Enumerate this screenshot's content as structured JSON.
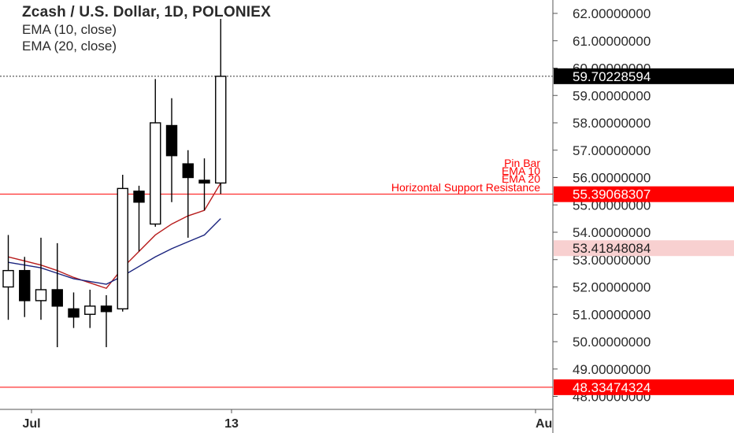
{
  "legend": {
    "title": "Zcash / U.S. Dollar, 1D, POLONIEX",
    "ema10": "EMA (10, close)",
    "ema20": "EMA (20, close)"
  },
  "colors": {
    "text": "#2a2a2a",
    "support_line": "#ff0000",
    "ema10": "#b71c1c",
    "ema20": "#1a237e",
    "candle_up_fill": "#ffffff",
    "candle_down_fill": "#000000",
    "price_tag_dark": "#000000",
    "price_tag_red": "#ff0000",
    "price_tag_light": "#f8d0d0",
    "annotation_text": "#ff0000"
  },
  "chart_data": {
    "type": "candlestick",
    "title": "Zcash / U.S. Dollar, 1D, POLONIEX",
    "x_tick_labels": [
      "Jul",
      "13",
      "Au"
    ],
    "y_ticks": [
      "48.00000000",
      "49.00000000",
      "50.00000000",
      "51.00000000",
      "52.00000000",
      "53.00000000",
      "54.00000000",
      "55.00000000",
      "56.00000000",
      "57.00000000",
      "58.00000000",
      "59.00000000",
      "60.00000000",
      "61.00000000",
      "62.00000000"
    ],
    "ylim": [
      47.6,
      62.5
    ],
    "grid": false,
    "candles": [
      {
        "o": 52.0,
        "h": 53.9,
        "l": 50.8,
        "c": 52.6
      },
      {
        "o": 52.6,
        "h": 53.1,
        "l": 50.9,
        "c": 51.5
      },
      {
        "o": 51.5,
        "h": 53.8,
        "l": 50.8,
        "c": 51.9
      },
      {
        "o": 51.9,
        "h": 53.6,
        "l": 49.8,
        "c": 51.3
      },
      {
        "o": 51.2,
        "h": 51.8,
        "l": 50.5,
        "c": 50.9
      },
      {
        "o": 51.0,
        "h": 51.9,
        "l": 50.5,
        "c": 51.3
      },
      {
        "o": 51.3,
        "h": 51.7,
        "l": 49.8,
        "c": 51.1
      },
      {
        "o": 51.2,
        "h": 56.1,
        "l": 51.1,
        "c": 55.6
      },
      {
        "o": 55.5,
        "h": 55.7,
        "l": 53.3,
        "c": 55.1
      },
      {
        "o": 54.3,
        "h": 59.6,
        "l": 54.2,
        "c": 58.0
      },
      {
        "o": 57.9,
        "h": 58.9,
        "l": 55.1,
        "c": 56.8
      },
      {
        "o": 56.5,
        "h": 57.0,
        "l": 53.8,
        "c": 56.0
      },
      {
        "o": 55.9,
        "h": 56.7,
        "l": 54.8,
        "c": 55.8
      },
      {
        "o": 55.8,
        "h": 61.8,
        "l": 55.4,
        "c": 59.7
      }
    ],
    "series": [
      {
        "name": "EMA (10, close)",
        "values": [
          53.1,
          52.95,
          52.8,
          52.6,
          52.35,
          52.15,
          51.95,
          52.7,
          53.3,
          53.9,
          54.3,
          54.6,
          54.8,
          55.8
        ]
      },
      {
        "name": "EMA (20, close)",
        "values": [
          52.9,
          52.8,
          52.7,
          52.5,
          52.3,
          52.2,
          52.1,
          52.4,
          52.75,
          53.1,
          53.4,
          53.65,
          53.9,
          54.5
        ]
      }
    ],
    "horizontal_lines": [
      {
        "value": 59.70228594,
        "label": "59.70228594",
        "style": "dotted",
        "tag": "dark"
      },
      {
        "value": 55.39068307,
        "label": "55.39068307",
        "style": "solid",
        "tag": "red"
      },
      {
        "value": 53.41848084,
        "label": "53.41848084",
        "style": "none",
        "tag": "light"
      },
      {
        "value": 48.33474324,
        "label": "48.33474324",
        "style": "solid",
        "tag": "red"
      }
    ],
    "annotations": [
      "Pin Bar",
      "EMA 10",
      "EMA 20",
      "Horizontal Support Resistance"
    ]
  }
}
